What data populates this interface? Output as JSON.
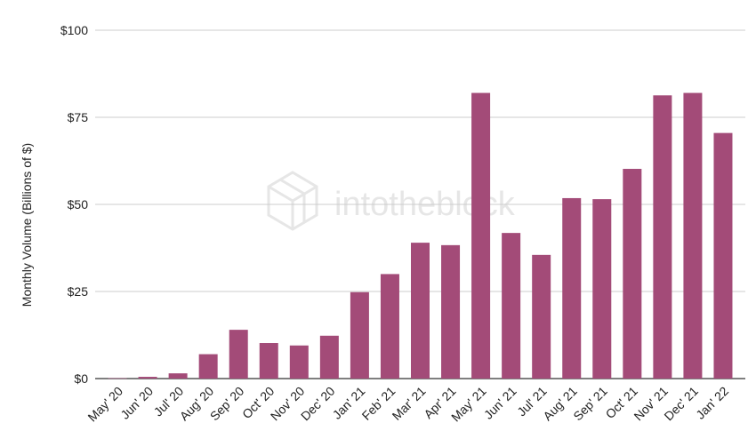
{
  "watermark": {
    "text": "intotheblock",
    "icon": "cube-logo-icon"
  },
  "chart_data": {
    "type": "bar",
    "title": "",
    "xlabel": "",
    "ylabel": "Monthly Volume (Billions of $)",
    "ylim": [
      0,
      100
    ],
    "yticks": [
      0,
      25,
      50,
      75,
      100
    ],
    "ytick_labels": [
      "$0",
      "$25",
      "$50",
      "$75",
      "$100"
    ],
    "grid": true,
    "legend": "none",
    "bar_color": "#a34b78",
    "categories": [
      "May' 20",
      "Jun' 20",
      "Jul' 20",
      "Aug' 20",
      "Sep' 20",
      "Oct' 20",
      "Nov' 20",
      "Dec' 20",
      "Jan' 21",
      "Feb' 21",
      "Mar' 21",
      "Apr' 21",
      "May' 21",
      "Jun' 21",
      "Jul' 21",
      "Aug' 21",
      "Sep' 21",
      "Oct' 21",
      "Nov' 21",
      "Dec' 21",
      "Jan' 22"
    ],
    "values": [
      0.1,
      0.5,
      1.5,
      7,
      14,
      10.2,
      9.5,
      12.3,
      24.8,
      30,
      39,
      38.3,
      82,
      41.8,
      35.5,
      51.8,
      51.5,
      60.2,
      81.3,
      82,
      70.5
    ]
  }
}
